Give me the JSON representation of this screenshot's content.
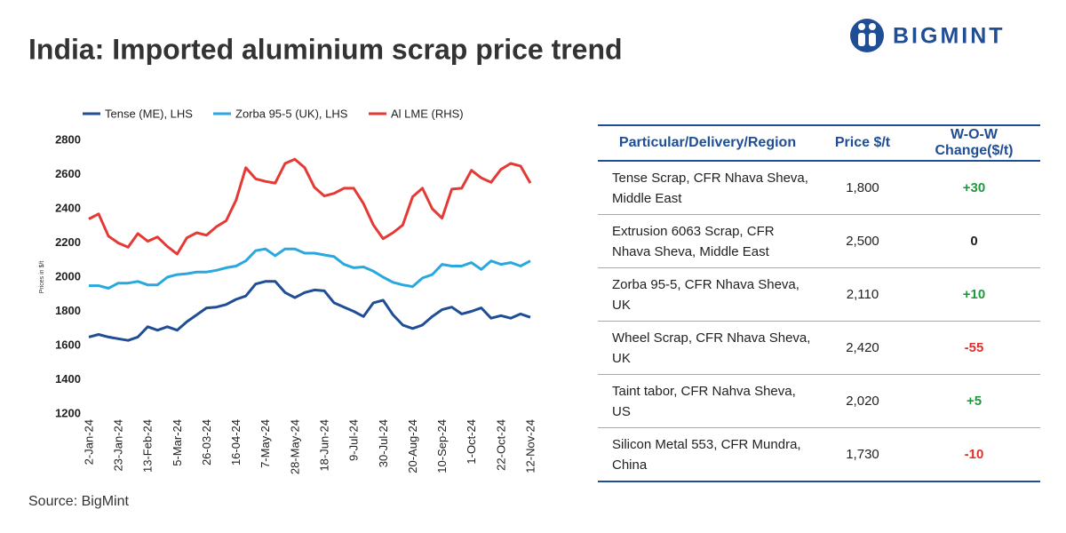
{
  "header": {
    "title": "India: Imported aluminium scrap price trend",
    "logo": "BIGMINT"
  },
  "chart_data": {
    "type": "line",
    "y_label": "Prices in $/t",
    "categories": [
      "2-Jan-24",
      null,
      null,
      "23-Jan-24",
      null,
      null,
      "13-Feb-24",
      null,
      null,
      "5-Mar-24",
      null,
      null,
      "26-03-24",
      null,
      null,
      "16-04-24",
      null,
      null,
      "7-May-24",
      null,
      null,
      "28-May-24",
      null,
      null,
      "18-Jun-24",
      null,
      null,
      "9-Jul-24",
      null,
      null,
      "30-Jul-24",
      null,
      null,
      "20-Aug-24",
      null,
      null,
      "10-Sep-24",
      null,
      null,
      "1-Oct-24",
      null,
      null,
      "22-Oct-24",
      null,
      null,
      "12-Nov-24"
    ],
    "series": [
      {
        "name": "Tense (ME), LHS",
        "color": "#1f4e96",
        "values": [
          1650,
          1665,
          1650,
          1640,
          1630,
          1650,
          1710,
          1690,
          1710,
          1690,
          1740,
          1780,
          1820,
          1825,
          1840,
          1870,
          1890,
          1960,
          1975,
          1975,
          1910,
          1880,
          1910,
          1925,
          1920,
          1850,
          1825,
          1800,
          1770,
          1850,
          1865,
          1780,
          1720,
          1700,
          1720,
          1770,
          1810,
          1825,
          1785,
          1800,
          1820,
          1760,
          1775,
          1760,
          1785,
          1765
        ]
      },
      {
        "name": "Zorba 95-5 (UK), LHS",
        "color": "#29a8e0",
        "values": [
          1950,
          1950,
          1935,
          1965,
          1965,
          1975,
          1955,
          1955,
          2000,
          2015,
          2020,
          2030,
          2030,
          2040,
          2055,
          2065,
          2095,
          2155,
          2165,
          2125,
          2165,
          2165,
          2140,
          2140,
          2130,
          2120,
          2075,
          2055,
          2060,
          2035,
          2000,
          1970,
          1955,
          1945,
          1995,
          2015,
          2075,
          2065,
          2065,
          2085,
          2045,
          2095,
          2075,
          2085,
          2065,
          2095
        ]
      },
      {
        "name": "Al LME (RHS)",
        "color": "#e53935",
        "values": [
          2340,
          2370,
          2240,
          2200,
          2175,
          2255,
          2210,
          2235,
          2180,
          2135,
          2230,
          2260,
          2245,
          2295,
          2330,
          2450,
          2640,
          2575,
          2560,
          2550,
          2665,
          2690,
          2640,
          2525,
          2475,
          2490,
          2520,
          2520,
          2430,
          2305,
          2225,
          2260,
          2305,
          2470,
          2520,
          2400,
          2345,
          2515,
          2520,
          2625,
          2580,
          2555,
          2630,
          2665,
          2650,
          2550
        ]
      }
    ],
    "ylim": [
      1200,
      2800
    ],
    "yticks": [
      1200,
      1400,
      1600,
      1800,
      2000,
      2200,
      2400,
      2600,
      2800
    ],
    "grid": false
  },
  "table": {
    "columns": [
      "Particular/Delivery/Region",
      "Price $/t",
      "W-O-W Change($/t)"
    ],
    "rows": [
      [
        "Tense Scrap, CFR Nhava Sheva, Middle East",
        "1,800",
        "+30"
      ],
      [
        "Extrusion 6063 Scrap, CFR Nhava Sheva, Middle East",
        "2,500",
        "0"
      ],
      [
        "Zorba 95-5, CFR Nhava Sheva, UK",
        "2,110",
        "+10"
      ],
      [
        "Wheel Scrap, CFR Nhava Sheva, UK",
        "2,420",
        "-55"
      ],
      [
        "Taint tabor, CFR Nahva Sheva, US",
        "2,020",
        "+5"
      ],
      [
        "Silicon Metal 553, CFR Mundra, China",
        "1,730",
        "-10"
      ]
    ]
  },
  "source": "Source: BigMint"
}
